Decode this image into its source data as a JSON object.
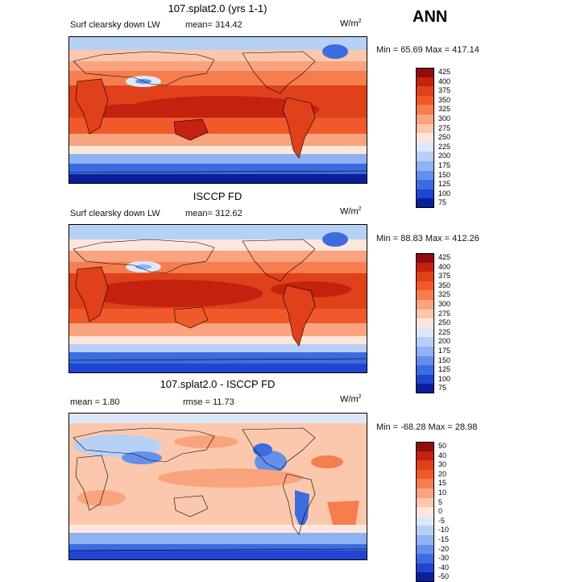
{
  "season": "ANN",
  "panels": [
    {
      "id": "model",
      "title": "107.splat2.0 (yrs 1-1)",
      "variable": "Surf clearsky down LW",
      "mean_text": "mean= 314.42",
      "units": "W/m",
      "units_sup": "2",
      "minmax_text": "Min =   65.69 Max = 417.14",
      "levels": [
        "425",
        "400",
        "375",
        "350",
        "325",
        "300",
        "275",
        "250",
        "225",
        "200",
        "175",
        "150",
        "125",
        "100",
        "75"
      ],
      "colors": [
        "#8f0d0d",
        "#c4220f",
        "#e0401a",
        "#f05a2a",
        "#f57d4e",
        "#f9a47f",
        "#fcc8ad",
        "#fde7dc",
        "#dbe8fb",
        "#b7d0f6",
        "#8fb3f2",
        "#6590ea",
        "#3d6ce1",
        "#1f45d2",
        "#0c1f9a"
      ]
    },
    {
      "id": "obs",
      "title": "ISCCP FD",
      "variable": "Surf clearsky down LW",
      "mean_text": "mean= 312.62",
      "units": "W/m",
      "units_sup": "2",
      "minmax_text": "Min =   88.83 Max = 412.26",
      "levels": [
        "425",
        "400",
        "375",
        "350",
        "325",
        "300",
        "275",
        "250",
        "225",
        "200",
        "175",
        "150",
        "125",
        "100",
        "75"
      ],
      "colors": [
        "#8f0d0d",
        "#c4220f",
        "#e0401a",
        "#f05a2a",
        "#f57d4e",
        "#f9a47f",
        "#fcc8ad",
        "#fde7dc",
        "#dbe8fb",
        "#b7d0f6",
        "#8fb3f2",
        "#6590ea",
        "#3d6ce1",
        "#1f45d2",
        "#0c1f9a"
      ]
    },
    {
      "id": "diff",
      "title": "107.splat2.0 - ISCCP FD",
      "variable": "",
      "mean_text": "mean =    1.80",
      "rmse_text": "rmse =   11.73",
      "units": "W/m",
      "units_sup": "2",
      "minmax_text": "Min = -68.28 Max =   28.98",
      "levels": [
        "50",
        "40",
        "30",
        "20",
        "15",
        "10",
        "5",
        "0",
        "-5",
        "-10",
        "-15",
        "-20",
        "-30",
        "-40",
        "-50"
      ],
      "colors": [
        "#8f0d0d",
        "#c4220f",
        "#e0401a",
        "#f05a2a",
        "#f57d4e",
        "#f9a47f",
        "#fcc8ad",
        "#fde7dc",
        "#dbe8fb",
        "#b7d0f6",
        "#8fb3f2",
        "#6590ea",
        "#3d6ce1",
        "#1f45d2",
        "#0c1f9a"
      ]
    }
  ]
}
